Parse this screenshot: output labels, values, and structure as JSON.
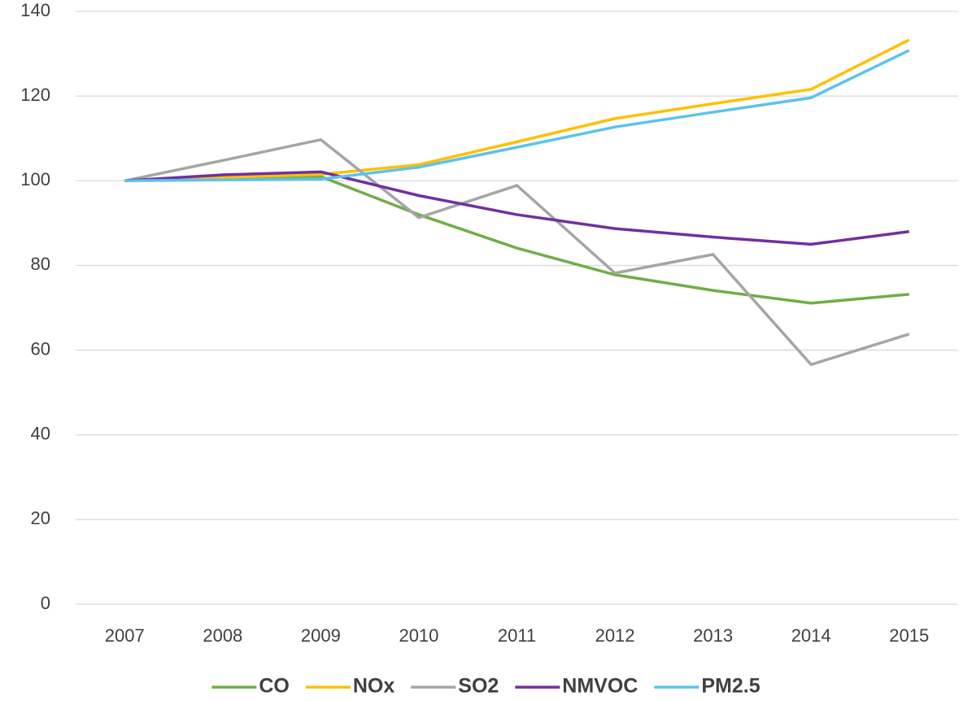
{
  "chart_data": {
    "type": "line",
    "categories": [
      "2007",
      "2008",
      "2009",
      "2010",
      "2011",
      "2012",
      "2013",
      "2014",
      "2015"
    ],
    "series": [
      {
        "name": "CO",
        "color": "#70ad47",
        "values": [
          100,
          100.8,
          101,
          92,
          84.1,
          77.8,
          74.1,
          71.1,
          73.2
        ]
      },
      {
        "name": "NOx",
        "color": "#ffc000",
        "values": [
          100,
          100.8,
          101.5,
          103.8,
          109.2,
          114.7,
          118.2,
          121.6,
          133.3
        ]
      },
      {
        "name": "SO2",
        "color": "#a5a5a5",
        "values": [
          100,
          104.8,
          109.7,
          91.3,
          98.9,
          78.2,
          82.6,
          56.6,
          63.8
        ]
      },
      {
        "name": "NMVOC",
        "color": "#7030a0",
        "values": [
          100,
          101.4,
          102.1,
          96.5,
          92,
          88.7,
          86.7,
          85,
          88
        ]
      },
      {
        "name": "PM2.5",
        "color": "#5bc2f0",
        "values": [
          100,
          100.2,
          100.4,
          103.2,
          107.9,
          112.7,
          116.2,
          119.6,
          130.8
        ]
      }
    ],
    "ylim": [
      0,
      140
    ],
    "yticks": [
      0,
      20,
      40,
      60,
      80,
      100,
      120,
      140
    ],
    "grid": true,
    "legend": "bottom"
  }
}
